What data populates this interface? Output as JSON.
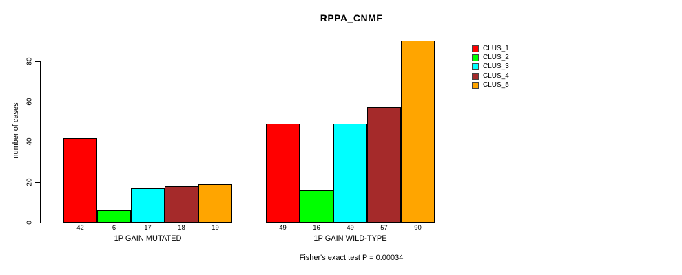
{
  "chart_data": {
    "type": "bar",
    "title": "RPPA_CNMF",
    "xlabel": "",
    "ylabel": "number of cases",
    "ylim": [
      0,
      93
    ],
    "yticks": [
      0,
      20,
      40,
      60,
      80
    ],
    "grid": false,
    "legend_position": "right",
    "categories": [
      "1P GAIN MUTATED",
      "1P GAIN WILD-TYPE"
    ],
    "series": [
      {
        "name": "CLUS_1",
        "color": "#FF0000",
        "values": [
          42,
          49
        ]
      },
      {
        "name": "CLUS_2",
        "color": "#00FF00",
        "values": [
          6,
          16
        ]
      },
      {
        "name": "CLUS_3",
        "color": "#00FFFF",
        "values": [
          17,
          49
        ]
      },
      {
        "name": "CLUS_4",
        "color": "#A52A2A",
        "values": [
          18,
          57
        ]
      },
      {
        "name": "CLUS_5",
        "color": "#FFA500",
        "values": [
          19,
          90
        ]
      }
    ],
    "bar_value_labels": {
      "1P GAIN MUTATED": [
        42,
        6,
        17,
        18,
        19
      ],
      "1P GAIN WILD-TYPE": [
        49,
        16,
        49,
        57,
        90
      ]
    },
    "annotation": "Fisher's exact test P = 0.00034"
  }
}
